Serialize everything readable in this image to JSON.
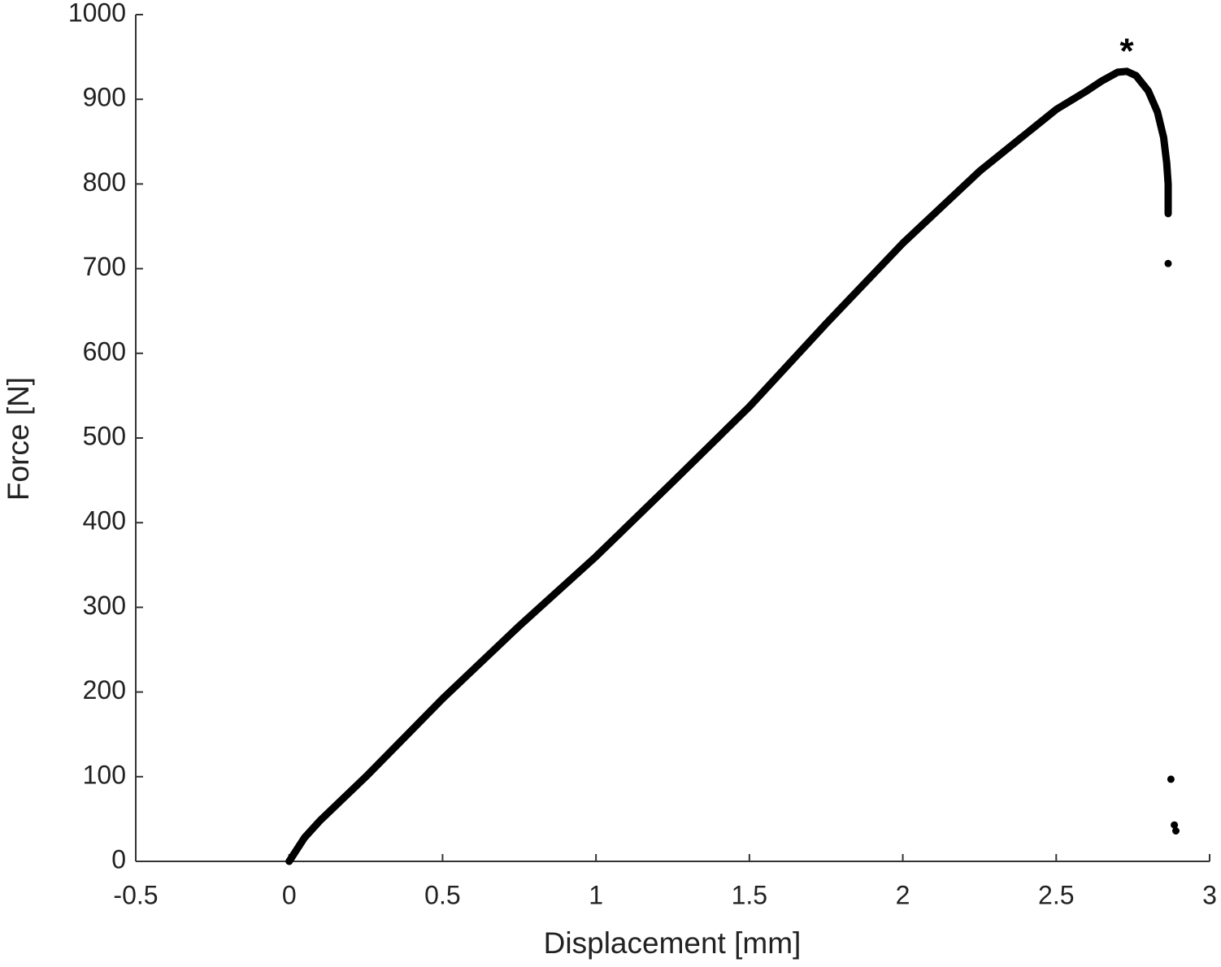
{
  "chart_data": {
    "type": "line",
    "x_label": "Displacement [mm]",
    "y_label": "Force [N]",
    "annotation": "*",
    "color": "#000000",
    "x": [
      0,
      0.05,
      0.1,
      0.25,
      0.5,
      0.75,
      1,
      1.25,
      1.5,
      1.75,
      2,
      2.25,
      2.5,
      2.6,
      2.65,
      2.7,
      2.73,
      2.76,
      2.8,
      2.83,
      2.85,
      2.86,
      2.865,
      2.865,
      2.865,
      null,
      2.865,
      null,
      2.874,
      null,
      2.885,
      null,
      2.89
    ],
    "y": [
      0,
      28,
      48,
      100,
      192,
      278,
      360,
      448,
      537,
      635,
      730,
      815,
      888,
      910,
      922,
      932,
      933,
      928,
      910,
      885,
      855,
      825,
      800,
      783,
      765,
      null,
      706,
      null,
      97,
      null,
      43,
      null,
      36
    ],
    "xlim": [
      -0.5,
      3
    ],
    "xticks": [
      -0.5,
      0,
      0.5,
      1,
      1.5,
      2,
      2.5,
      3
    ],
    "ylim": [
      0,
      1000
    ],
    "yticks": [
      0,
      100,
      200,
      300,
      400,
      500,
      600,
      700,
      800,
      900,
      1000
    ],
    "grid": false
  }
}
